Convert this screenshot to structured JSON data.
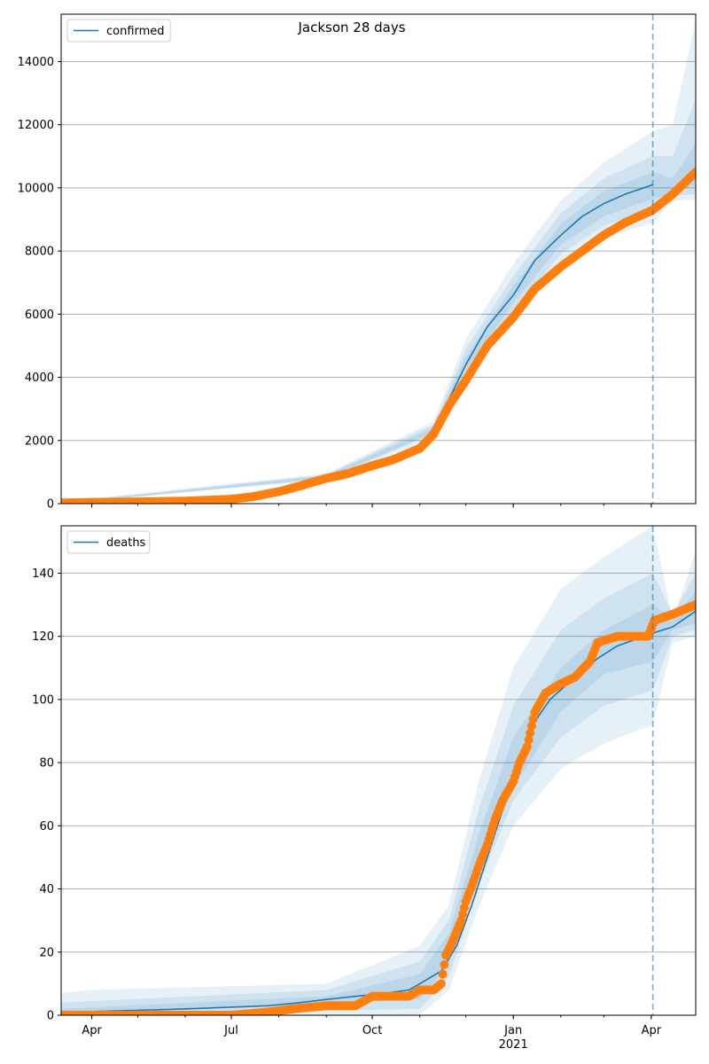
{
  "colors": {
    "model_line": "#1f77b4",
    "observed": "#ff7f0e",
    "band": "#1f77b4",
    "grid": "#b0b0b0",
    "cutoff": "#1f77b4"
  },
  "chart_data": [
    {
      "type": "line",
      "title": "Jackson 28 days",
      "legend": [
        "confirmed"
      ],
      "legend_position": "top-left",
      "grid": "y",
      "x_ticks": [
        "Apr",
        "Jul",
        "Oct",
        "Jan",
        "Apr"
      ],
      "x_year_label": "2021",
      "xlim": [
        "2020-03-12",
        "2021-04-30"
      ],
      "ylim": [
        0,
        15500
      ],
      "yticks": [
        0,
        2000,
        4000,
        6000,
        8000,
        10000,
        12000,
        14000
      ],
      "forecast_start": "2021-04-02",
      "model_series": [
        [
          "2020-03-12",
          5
        ],
        [
          "2020-05-01",
          30
        ],
        [
          "2020-06-01",
          60
        ],
        [
          "2020-07-01",
          150
        ],
        [
          "2020-07-15",
          250
        ],
        [
          "2020-08-01",
          420
        ],
        [
          "2020-08-15",
          600
        ],
        [
          "2020-09-01",
          850
        ],
        [
          "2020-09-15",
          1000
        ],
        [
          "2020-10-01",
          1250
        ],
        [
          "2020-10-15",
          1450
        ],
        [
          "2020-11-01",
          1800
        ],
        [
          "2020-11-10",
          2300
        ],
        [
          "2020-11-20",
          3300
        ],
        [
          "2020-12-01",
          4400
        ],
        [
          "2020-12-15",
          5600
        ],
        [
          "2021-01-01",
          6600
        ],
        [
          "2021-01-15",
          7700
        ],
        [
          "2021-02-01",
          8500
        ],
        [
          "2021-02-15",
          9100
        ],
        [
          "2021-03-01",
          9500
        ],
        [
          "2021-03-15",
          9800
        ],
        [
          "2021-04-02",
          10100
        ]
      ],
      "observed": [
        [
          "2020-03-12",
          20
        ],
        [
          "2020-04-01",
          40
        ],
        [
          "2020-05-01",
          55
        ],
        [
          "2020-06-01",
          80
        ],
        [
          "2020-07-01",
          140
        ],
        [
          "2020-07-15",
          220
        ],
        [
          "2020-08-01",
          380
        ],
        [
          "2020-08-15",
          560
        ],
        [
          "2020-09-01",
          800
        ],
        [
          "2020-09-15",
          950
        ],
        [
          "2020-10-01",
          1200
        ],
        [
          "2020-10-15",
          1400
        ],
        [
          "2020-11-01",
          1750
        ],
        [
          "2020-11-10",
          2200
        ],
        [
          "2020-11-20",
          3100
        ],
        [
          "2020-12-01",
          3900
        ],
        [
          "2020-12-15",
          5000
        ],
        [
          "2021-01-01",
          5900
        ],
        [
          "2021-01-15",
          6800
        ],
        [
          "2021-02-01",
          7500
        ],
        [
          "2021-02-15",
          8000
        ],
        [
          "2021-03-01",
          8500
        ],
        [
          "2021-03-15",
          8900
        ],
        [
          "2021-04-02",
          9300
        ],
        [
          "2021-04-15",
          9800
        ],
        [
          "2021-04-30",
          10500
        ]
      ],
      "bands": [
        {
          "lower": [
            [
              "2020-03-12",
              0
            ],
            [
              "2020-09-01",
              750
            ],
            [
              "2020-11-10",
              2100
            ],
            [
              "2020-12-01",
              3900
            ],
            [
              "2021-01-01",
              5800
            ],
            [
              "2021-02-01",
              7600
            ],
            [
              "2021-03-01",
              8400
            ],
            [
              "2021-04-02",
              8900
            ],
            [
              "2021-04-15",
              9600
            ],
            [
              "2021-04-30",
              9600
            ]
          ],
          "upper": [
            [
              "2020-03-12",
              60
            ],
            [
              "2020-09-01",
              950
            ],
            [
              "2020-11-10",
              2600
            ],
            [
              "2020-12-01",
              5200
            ],
            [
              "2021-01-01",
              7600
            ],
            [
              "2021-02-01",
              9600
            ],
            [
              "2021-03-01",
              10800
            ],
            [
              "2021-04-02",
              11800
            ],
            [
              "2021-04-15",
              12000
            ],
            [
              "2021-04-30",
              15300
            ]
          ]
        },
        {
          "lower": [
            [
              "2020-03-12",
              0
            ],
            [
              "2020-09-01",
              780
            ],
            [
              "2020-11-10",
              2200
            ],
            [
              "2020-12-01",
              4100
            ],
            [
              "2021-01-01",
              6100
            ],
            [
              "2021-02-01",
              7900
            ],
            [
              "2021-03-01",
              8800
            ],
            [
              "2021-04-02",
              9300
            ],
            [
              "2021-04-15",
              9750
            ],
            [
              "2021-04-30",
              9800
            ]
          ],
          "upper": [
            [
              "2020-03-12",
              40
            ],
            [
              "2020-09-01",
              920
            ],
            [
              "2020-11-10",
              2500
            ],
            [
              "2020-12-01",
              4900
            ],
            [
              "2021-01-01",
              7200
            ],
            [
              "2021-02-01",
              9200
            ],
            [
              "2021-03-01",
              10300
            ],
            [
              "2021-04-02",
              11000
            ],
            [
              "2021-04-15",
              11000
            ],
            [
              "2021-04-30",
              12800
            ]
          ]
        },
        {
          "lower": [
            [
              "2020-03-12",
              0
            ],
            [
              "2020-09-01",
              810
            ],
            [
              "2020-11-10",
              2250
            ],
            [
              "2020-12-01",
              4250
            ],
            [
              "2021-01-01",
              6350
            ],
            [
              "2021-02-01",
              8200
            ],
            [
              "2021-03-01",
              9100
            ],
            [
              "2021-04-02",
              9650
            ],
            [
              "2021-04-15",
              9850
            ],
            [
              "2021-04-30",
              10100
            ]
          ],
          "upper": [
            [
              "2020-03-12",
              25
            ],
            [
              "2020-09-01",
              890
            ],
            [
              "2020-11-10",
              2400
            ],
            [
              "2020-12-01",
              4650
            ],
            [
              "2021-01-01",
              6900
            ],
            [
              "2021-02-01",
              8850
            ],
            [
              "2021-03-01",
              9900
            ],
            [
              "2021-04-02",
              10500
            ],
            [
              "2021-04-15",
              10300
            ],
            [
              "2021-04-30",
              11400
            ]
          ]
        }
      ]
    },
    {
      "type": "line",
      "legend": [
        "deaths"
      ],
      "legend_position": "top-left",
      "grid": "y",
      "x_ticks": [
        "Apr",
        "Jul",
        "Oct",
        "Jan",
        "Apr"
      ],
      "x_year_label": "2021",
      "xlim": [
        "2020-03-12",
        "2021-04-30"
      ],
      "ylim": [
        0,
        155
      ],
      "yticks": [
        0,
        20,
        40,
        60,
        80,
        100,
        120,
        140
      ],
      "forecast_start": "2021-04-02",
      "model_series": [
        [
          "2020-03-12",
          0
        ],
        [
          "2020-03-20",
          1
        ],
        [
          "2020-06-01",
          2
        ],
        [
          "2020-07-25",
          3
        ],
        [
          "2020-08-15",
          4
        ],
        [
          "2020-09-01",
          5
        ],
        [
          "2020-09-20",
          6
        ],
        [
          "2020-10-10",
          7
        ],
        [
          "2020-10-25",
          8
        ],
        [
          "2020-11-01",
          10
        ],
        [
          "2020-11-15",
          14
        ],
        [
          "2020-11-25",
          22
        ],
        [
          "2020-12-05",
          35
        ],
        [
          "2020-12-15",
          50
        ],
        [
          "2020-12-25",
          65
        ],
        [
          "2021-01-05",
          80
        ],
        [
          "2021-01-15",
          93
        ],
        [
          "2021-01-25",
          100
        ],
        [
          "2021-02-10",
          107
        ],
        [
          "2021-02-25",
          113
        ],
        [
          "2021-03-10",
          117
        ],
        [
          "2021-04-02",
          121
        ],
        [
          "2021-04-15",
          123
        ],
        [
          "2021-04-30",
          128
        ]
      ],
      "observed": [
        [
          "2020-03-12",
          0
        ],
        [
          "2020-07-01",
          0
        ],
        [
          "2020-07-25",
          1
        ],
        [
          "2020-08-10",
          2
        ],
        [
          "2020-09-01",
          3
        ],
        [
          "2020-09-20",
          3
        ],
        [
          "2020-10-01",
          6
        ],
        [
          "2020-10-25",
          6
        ],
        [
          "2020-11-01",
          8
        ],
        [
          "2020-11-10",
          8
        ],
        [
          "2020-11-15",
          10
        ],
        [
          "2020-11-18",
          19
        ],
        [
          "2020-11-22",
          23
        ],
        [
          "2020-11-28",
          30
        ],
        [
          "2020-12-01",
          36
        ],
        [
          "2020-12-05",
          41
        ],
        [
          "2020-12-10",
          48
        ],
        [
          "2020-12-15",
          54
        ],
        [
          "2020-12-20",
          62
        ],
        [
          "2020-12-25",
          68
        ],
        [
          "2021-01-01",
          74
        ],
        [
          "2021-01-05",
          80
        ],
        [
          "2021-01-10",
          85
        ],
        [
          "2021-01-15",
          96
        ],
        [
          "2021-01-22",
          102
        ],
        [
          "2021-02-01",
          105
        ],
        [
          "2021-02-10",
          107
        ],
        [
          "2021-02-20",
          112
        ],
        [
          "2021-02-25",
          118
        ],
        [
          "2021-03-10",
          120
        ],
        [
          "2021-03-30",
          120
        ],
        [
          "2021-04-03",
          125
        ],
        [
          "2021-04-15",
          127
        ],
        [
          "2021-04-30",
          130
        ]
      ],
      "bands": [
        {
          "lower": [
            [
              "2020-03-12",
              0
            ],
            [
              "2020-11-01",
              0
            ],
            [
              "2020-11-20",
              8
            ],
            [
              "2020-12-10",
              35
            ],
            [
              "2021-01-01",
              60
            ],
            [
              "2021-02-01",
              78
            ],
            [
              "2021-03-01",
              86
            ],
            [
              "2021-04-02",
              92
            ],
            [
              "2021-04-15",
              118
            ],
            [
              "2021-04-30",
              120
            ]
          ],
          "upper": [
            [
              "2020-03-12",
              7
            ],
            [
              "2020-04-01",
              8
            ],
            [
              "2020-09-01",
              10
            ],
            [
              "2020-11-01",
              22
            ],
            [
              "2020-11-20",
              35
            ],
            [
              "2020-12-10",
              75
            ],
            [
              "2021-01-01",
              110
            ],
            [
              "2021-02-01",
              135
            ],
            [
              "2021-03-01",
              145
            ],
            [
              "2021-04-02",
              155
            ],
            [
              "2021-04-15",
              125
            ],
            [
              "2021-04-30",
              147
            ]
          ]
        },
        {
          "lower": [
            [
              "2020-03-12",
              0
            ],
            [
              "2020-11-01",
              2
            ],
            [
              "2020-11-20",
              12
            ],
            [
              "2020-12-10",
              42
            ],
            [
              "2021-01-01",
              68
            ],
            [
              "2021-02-01",
              88
            ],
            [
              "2021-03-01",
              98
            ],
            [
              "2021-04-02",
              103
            ],
            [
              "2021-04-15",
              120
            ],
            [
              "2021-04-30",
              122
            ]
          ],
          "upper": [
            [
              "2020-03-12",
              4
            ],
            [
              "2020-09-01",
              8
            ],
            [
              "2020-11-01",
              17
            ],
            [
              "2020-11-20",
              30
            ],
            [
              "2020-12-10",
              66
            ],
            [
              "2021-01-01",
              98
            ],
            [
              "2021-02-01",
              122
            ],
            [
              "2021-03-01",
              132
            ],
            [
              "2021-04-02",
              140
            ],
            [
              "2021-04-15",
              127
            ],
            [
              "2021-04-30",
              140
            ]
          ]
        },
        {
          "lower": [
            [
              "2020-03-12",
              0
            ],
            [
              "2020-11-01",
              5
            ],
            [
              "2020-11-20",
              16
            ],
            [
              "2020-12-10",
              46
            ],
            [
              "2021-01-01",
              72
            ],
            [
              "2021-02-01",
              96
            ],
            [
              "2021-03-01",
              108
            ],
            [
              "2021-04-02",
              112
            ],
            [
              "2021-04-15",
              122
            ],
            [
              "2021-04-30",
              124
            ]
          ],
          "upper": [
            [
              "2020-03-12",
              2
            ],
            [
              "2020-09-01",
              6
            ],
            [
              "2020-11-01",
              13
            ],
            [
              "2020-11-20",
              26
            ],
            [
              "2020-12-10",
              58
            ],
            [
              "2021-01-01",
              88
            ],
            [
              "2021-02-01",
              110
            ],
            [
              "2021-03-01",
              122
            ],
            [
              "2021-04-02",
              130
            ],
            [
              "2021-04-15",
              126
            ],
            [
              "2021-04-30",
              134
            ]
          ]
        }
      ]
    }
  ]
}
